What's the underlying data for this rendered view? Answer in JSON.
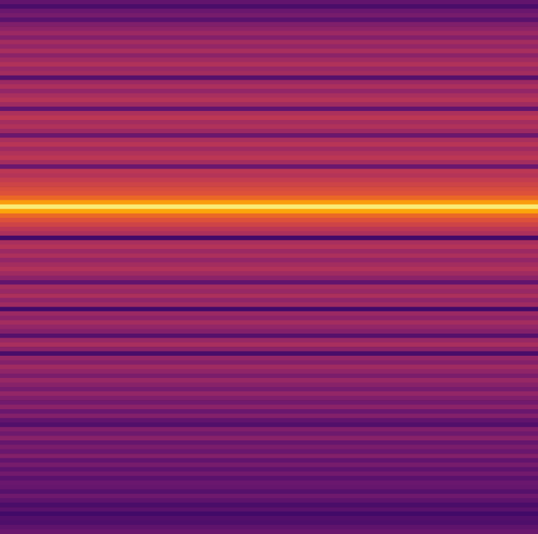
{
  "chart_data": {
    "type": "heatmap",
    "categories": [
      null,
      null,
      null,
      null,
      null,
      null,
      null,
      null,
      null,
      null,
      null,
      null,
      null,
      null,
      null,
      null,
      null,
      null,
      null,
      null,
      null,
      null,
      null,
      null,
      null,
      null,
      null,
      null,
      null,
      null,
      null,
      null,
      null,
      null,
      null,
      null,
      null,
      null,
      null,
      null,
      null,
      null,
      null,
      null,
      null,
      null,
      null,
      null,
      null,
      null,
      null,
      null,
      null,
      null,
      null,
      null,
      null,
      null,
      null,
      null,
      null,
      null,
      null,
      null,
      null,
      null,
      null,
      null,
      null,
      null,
      null,
      null,
      null,
      null,
      null,
      null,
      null,
      null,
      null,
      null,
      null,
      null,
      null,
      null,
      null,
      null,
      null,
      null,
      null,
      null,
      null,
      null,
      null,
      null,
      null,
      null,
      null,
      null,
      null,
      null,
      null,
      null,
      null,
      null,
      null,
      null,
      null,
      null,
      null,
      null,
      null,
      null,
      null,
      null,
      null,
      null,
      null,
      null,
      null,
      null
    ],
    "values": [
      0.28,
      0.22,
      0.3,
      0.33,
      0.26,
      0.35,
      0.38,
      0.42,
      0.36,
      0.44,
      0.4,
      0.45,
      0.38,
      0.43,
      0.47,
      0.41,
      0.44,
      0.25,
      0.42,
      0.46,
      0.4,
      0.45,
      0.48,
      0.43,
      0.28,
      0.46,
      0.5,
      0.44,
      0.47,
      0.42,
      0.3,
      0.45,
      0.49,
      0.43,
      0.47,
      0.5,
      0.44,
      0.3,
      0.5,
      0.48,
      0.52,
      0.55,
      0.58,
      0.6,
      0.66,
      0.78,
      0.95,
      0.8,
      0.66,
      0.6,
      0.55,
      0.5,
      0.46,
      0.2,
      0.45,
      0.48,
      0.42,
      0.46,
      0.4,
      0.44,
      0.47,
      0.43,
      0.38,
      0.28,
      0.44,
      0.41,
      0.46,
      0.39,
      0.43,
      0.2,
      0.42,
      0.38,
      0.44,
      0.4,
      0.36,
      0.25,
      0.41,
      0.45,
      0.38,
      0.22,
      0.4,
      0.36,
      0.43,
      0.39,
      0.34,
      0.41,
      0.37,
      0.33,
      0.4,
      0.35,
      0.32,
      0.38,
      0.3,
      0.36,
      0.28,
      0.24,
      0.35,
      0.31,
      0.37,
      0.29,
      0.34,
      0.3,
      0.36,
      0.28,
      0.33,
      0.27,
      0.32,
      0.26,
      0.3,
      0.29,
      0.25,
      0.31,
      0.27,
      0.22,
      0.26,
      0.2,
      0.24,
      0.23,
      0.27,
      0.3
    ],
    "xlim": [
      0,
      1
    ],
    "zlim": [
      0,
      1
    ],
    "color": "inferno",
    "tick_labels": false,
    "grid": false
  }
}
